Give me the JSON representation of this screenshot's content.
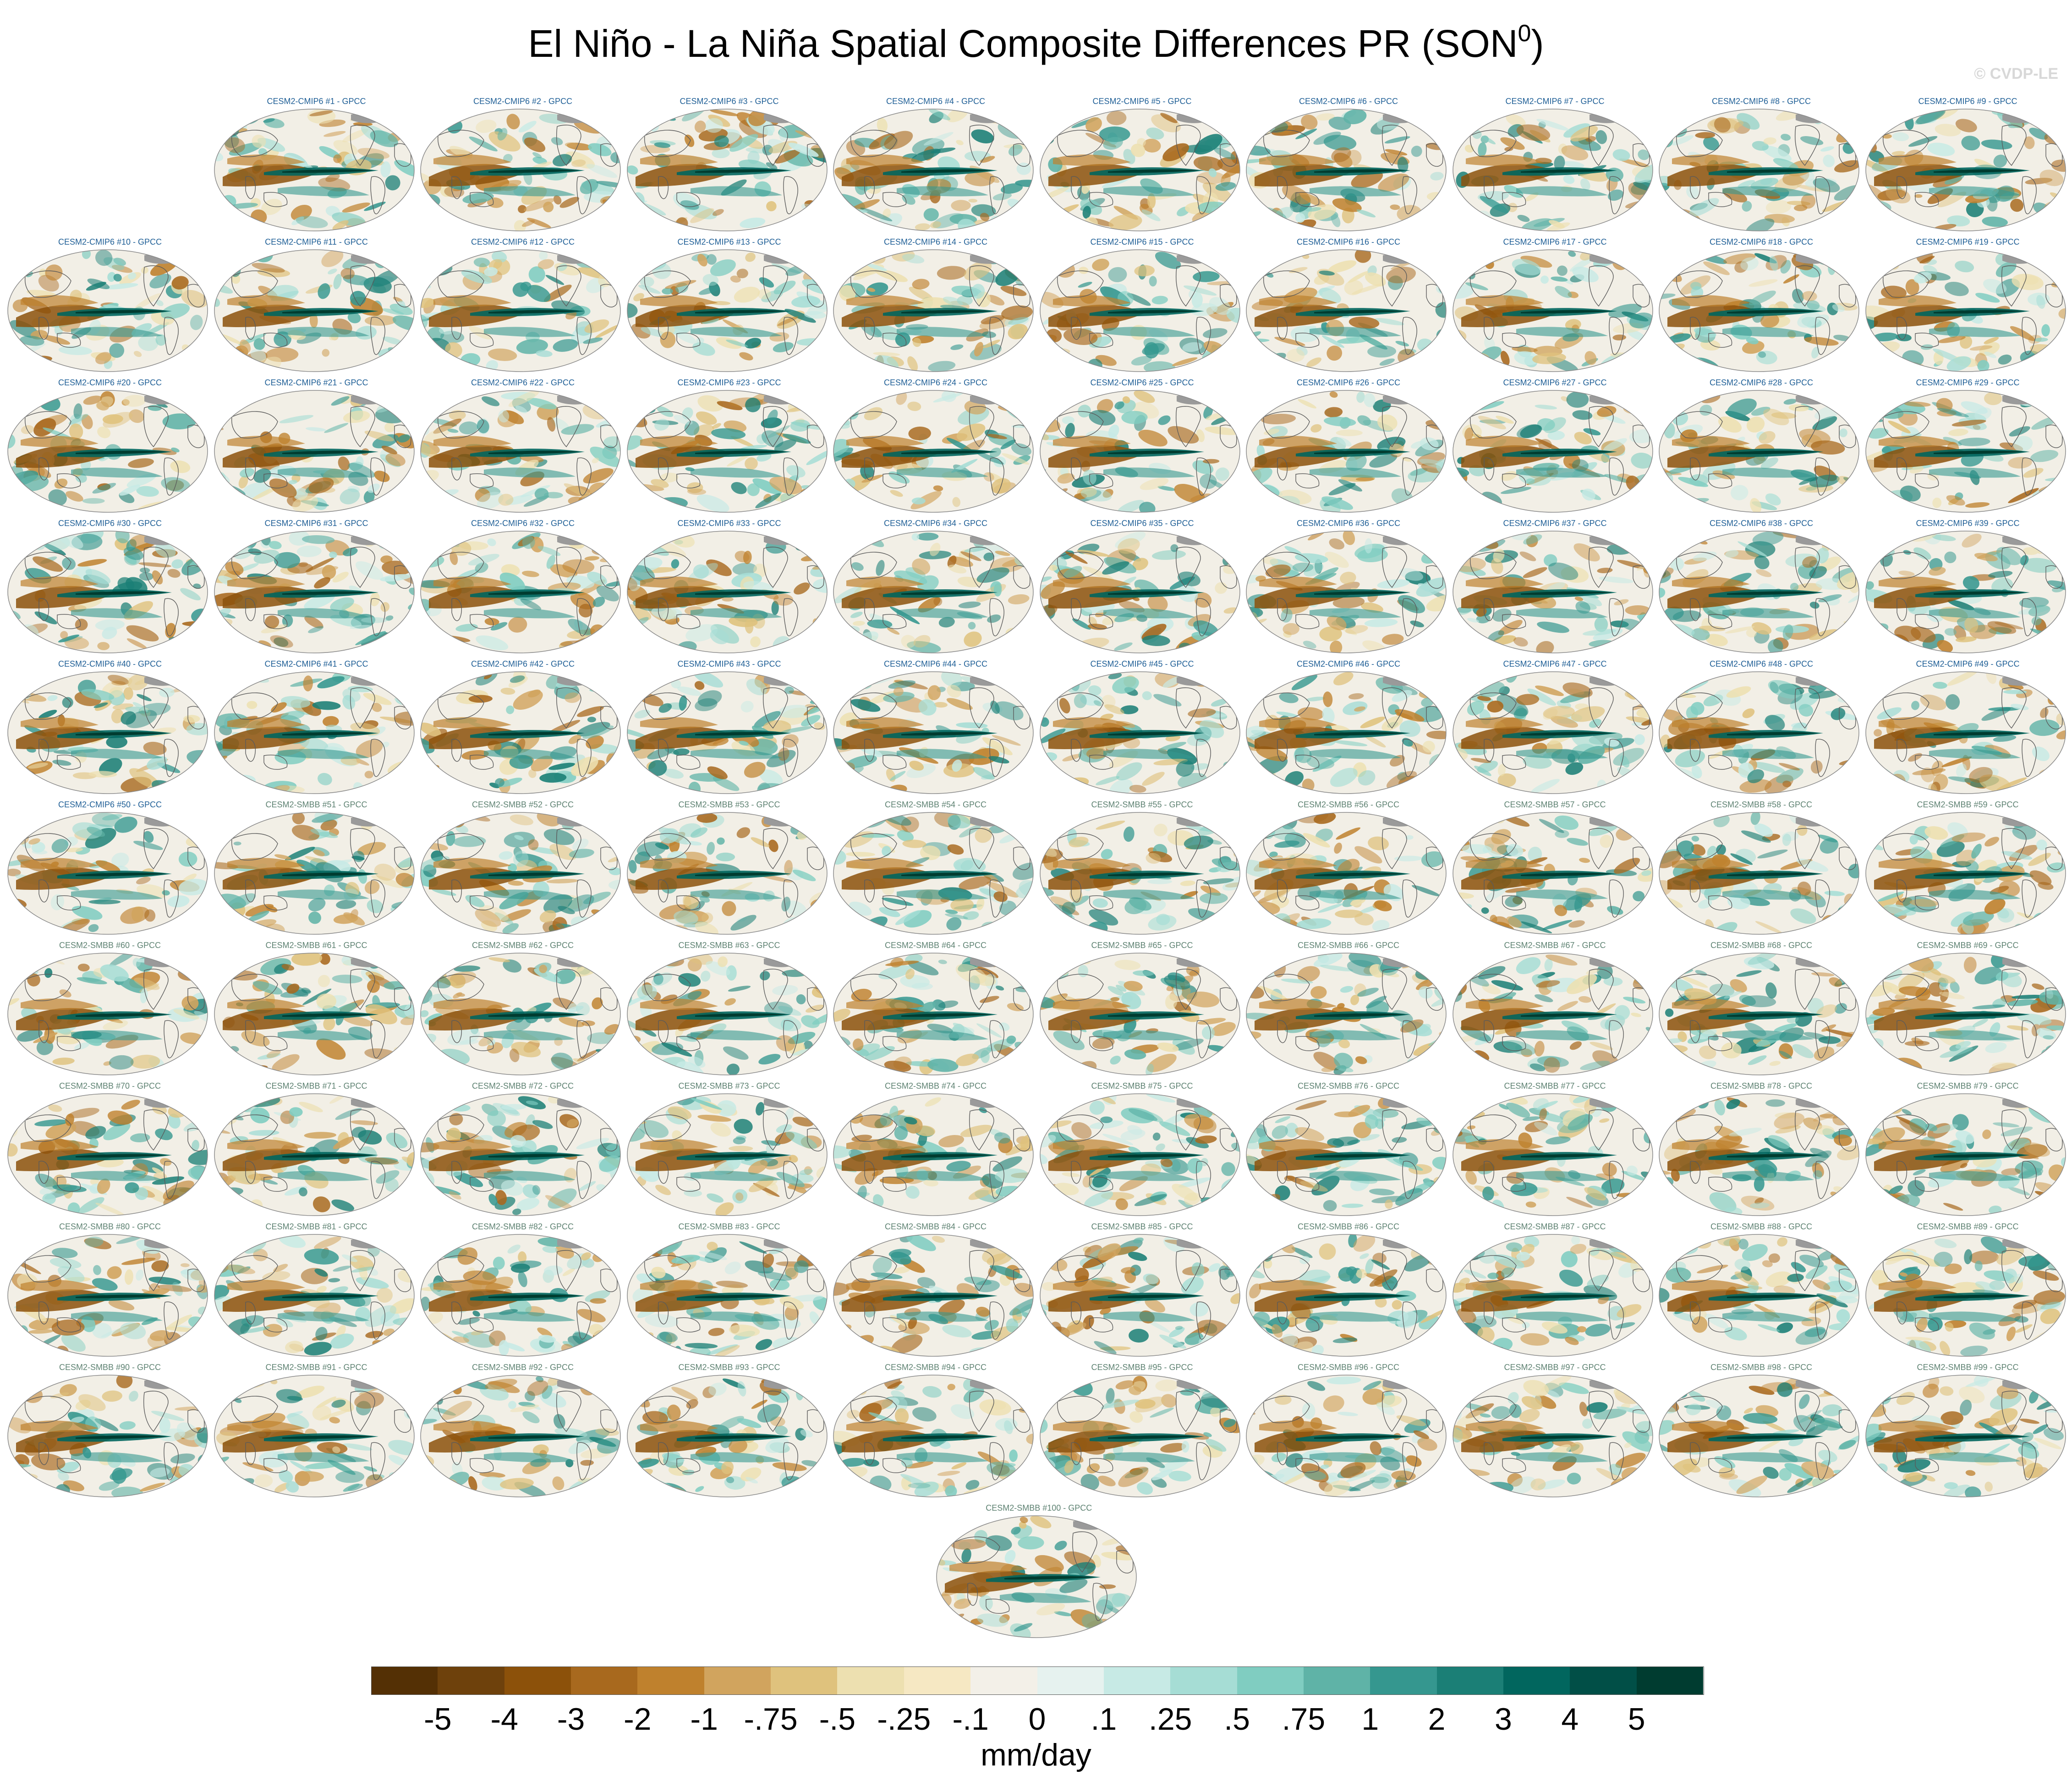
{
  "title": {
    "main": "El Niño - La Niña Spatial Composite Differences PR (SON",
    "superscript": "0",
    "close": ")"
  },
  "watermark": "© CVDP-LE",
  "panels": [
    "CESM2-CMIP6 #1 - GPCC",
    "CESM2-CMIP6 #2 - GPCC",
    "CESM2-CMIP6 #3 - GPCC",
    "CESM2-CMIP6 #4 - GPCC",
    "CESM2-CMIP6 #5 - GPCC",
    "CESM2-CMIP6 #6 - GPCC",
    "CESM2-CMIP6 #7 - GPCC",
    "CESM2-CMIP6 #8 - GPCC",
    "CESM2-CMIP6 #9 - GPCC",
    "CESM2-CMIP6 #10 - GPCC",
    "CESM2-CMIP6 #11 - GPCC",
    "CESM2-CMIP6 #12 - GPCC",
    "CESM2-CMIP6 #13 - GPCC",
    "CESM2-CMIP6 #14 - GPCC",
    "CESM2-CMIP6 #15 - GPCC",
    "CESM2-CMIP6 #16 - GPCC",
    "CESM2-CMIP6 #17 - GPCC",
    "CESM2-CMIP6 #18 - GPCC",
    "CESM2-CMIP6 #19 - GPCC",
    "CESM2-CMIP6 #20 - GPCC",
    "CESM2-CMIP6 #21 - GPCC",
    "CESM2-CMIP6 #22 - GPCC",
    "CESM2-CMIP6 #23 - GPCC",
    "CESM2-CMIP6 #24 - GPCC",
    "CESM2-CMIP6 #25 - GPCC",
    "CESM2-CMIP6 #26 - GPCC",
    "CESM2-CMIP6 #27 - GPCC",
    "CESM2-CMIP6 #28 - GPCC",
    "CESM2-CMIP6 #29 - GPCC",
    "CESM2-CMIP6 #30 - GPCC",
    "CESM2-CMIP6 #31 - GPCC",
    "CESM2-CMIP6 #32 - GPCC",
    "CESM2-CMIP6 #33 - GPCC",
    "CESM2-CMIP6 #34 - GPCC",
    "CESM2-CMIP6 #35 - GPCC",
    "CESM2-CMIP6 #36 - GPCC",
    "CESM2-CMIP6 #37 - GPCC",
    "CESM2-CMIP6 #38 - GPCC",
    "CESM2-CMIP6 #39 - GPCC",
    "CESM2-CMIP6 #40 - GPCC",
    "CESM2-CMIP6 #41 - GPCC",
    "CESM2-CMIP6 #42 - GPCC",
    "CESM2-CMIP6 #43 - GPCC",
    "CESM2-CMIP6 #44 - GPCC",
    "CESM2-CMIP6 #45 - GPCC",
    "CESM2-CMIP6 #46 - GPCC",
    "CESM2-CMIP6 #47 - GPCC",
    "CESM2-CMIP6 #48 - GPCC",
    "CESM2-CMIP6 #49 - GPCC",
    "CESM2-CMIP6 #50 - GPCC",
    "CESM2-SMBB #51 - GPCC",
    "CESM2-SMBB #52 - GPCC",
    "CESM2-SMBB #53 - GPCC",
    "CESM2-SMBB #54 - GPCC",
    "CESM2-SMBB #55 - GPCC",
    "CESM2-SMBB #56 - GPCC",
    "CESM2-SMBB #57 - GPCC",
    "CESM2-SMBB #58 - GPCC",
    "CESM2-SMBB #59 - GPCC",
    "CESM2-SMBB #60 - GPCC",
    "CESM2-SMBB #61 - GPCC",
    "CESM2-SMBB #62 - GPCC",
    "CESM2-SMBB #63 - GPCC",
    "CESM2-SMBB #64 - GPCC",
    "CESM2-SMBB #65 - GPCC",
    "CESM2-SMBB #66 - GPCC",
    "CESM2-SMBB #67 - GPCC",
    "CESM2-SMBB #68 - GPCC",
    "CESM2-SMBB #69 - GPCC",
    "CESM2-SMBB #70 - GPCC",
    "CESM2-SMBB #71 - GPCC",
    "CESM2-SMBB #72 - GPCC",
    "CESM2-SMBB #73 - GPCC",
    "CESM2-SMBB #74 - GPCC",
    "CESM2-SMBB #75 - GPCC",
    "CESM2-SMBB #76 - GPCC",
    "CESM2-SMBB #77 - GPCC",
    "CESM2-SMBB #78 - GPCC",
    "CESM2-SMBB #79 - GPCC",
    "CESM2-SMBB #80 - GPCC",
    "CESM2-SMBB #81 - GPCC",
    "CESM2-SMBB #82 - GPCC",
    "CESM2-SMBB #83 - GPCC",
    "CESM2-SMBB #84 - GPCC",
    "CESM2-SMBB #85 - GPCC",
    "CESM2-SMBB #86 - GPCC",
    "CESM2-SMBB #87 - GPCC",
    "CESM2-SMBB #88 - GPCC",
    "CESM2-SMBB #89 - GPCC",
    "CESM2-SMBB #90 - GPCC",
    "CESM2-SMBB #91 - GPCC",
    "CESM2-SMBB #92 - GPCC",
    "CESM2-SMBB #93 - GPCC",
    "CESM2-SMBB #94 - GPCC",
    "CESM2-SMBB #95 - GPCC",
    "CESM2-SMBB #96 - GPCC",
    "CESM2-SMBB #97 - GPCC",
    "CESM2-SMBB #98 - GPCC",
    "CESM2-SMBB #99 - GPCC",
    "CESM2-SMBB #100 - GPCC"
  ],
  "colorbar": {
    "colors": [
      "#543005",
      "#6e410c",
      "#8c510a",
      "#a8691e",
      "#bf812d",
      "#d1a45e",
      "#dfc27d",
      "#ede0b0",
      "#f6e8c3",
      "#f3f0e8",
      "#e6f2ef",
      "#c7eae5",
      "#a6ddd5",
      "#80cdc1",
      "#5fb3a7",
      "#35978f",
      "#1b7f76",
      "#01665e",
      "#014f47",
      "#003c30"
    ],
    "ticks": [
      "-5",
      "-4",
      "-3",
      "-2",
      "-1",
      "-.75",
      "-.5",
      "-.25",
      "-.1",
      "0",
      ".1",
      ".25",
      ".5",
      ".75",
      "1",
      "2",
      "3",
      "4",
      "5"
    ],
    "units": "mm/day"
  },
  "colors": {
    "cmip6_label": "#1f5f96",
    "smbb_label": "#5e8272",
    "land_outline": "#5a5a5a",
    "sea_ice": "#9a9a9a"
  }
}
